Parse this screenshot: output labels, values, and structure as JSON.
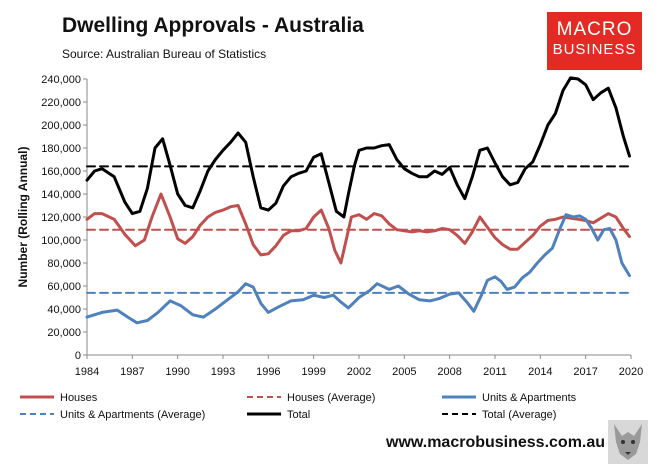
{
  "title": "Dwelling Approvals - Australia",
  "subtitle": "Source: Australian Bureau of Statistics",
  "logo": {
    "line1": "MACRO",
    "line2": "BUSINESS"
  },
  "website": "www.macrobusiness.com.au",
  "colors": {
    "houses": "#c0504d",
    "units": "#4f81bd",
    "total": "#000000"
  },
  "chart_data": {
    "type": "line",
    "title": "Dwelling Approvals - Australia",
    "xlabel": "",
    "ylabel": "Number (Rolling Annual)",
    "xlim": [
      1984,
      2020
    ],
    "ylim": [
      0,
      240000
    ],
    "yticks": [
      0,
      20000,
      40000,
      60000,
      80000,
      100000,
      120000,
      140000,
      160000,
      180000,
      200000,
      220000,
      240000
    ],
    "ytick_labels": [
      "0",
      "20,000",
      "40,000",
      "60,000",
      "80,000",
      "100,000",
      "120,000",
      "140,000",
      "160,000",
      "180,000",
      "200,000",
      "220,000",
      "240,000"
    ],
    "xticks": [
      1984,
      1987,
      1990,
      1993,
      1996,
      1999,
      2002,
      2005,
      2008,
      2011,
      2014,
      2017,
      2020
    ],
    "xtick_labels": [
      "1984",
      "1987",
      "1990",
      "1993",
      "1996",
      "1999",
      "2002",
      "2005",
      "2008",
      "2011",
      "2014",
      "2017",
      "2020"
    ],
    "series": [
      {
        "name": "Houses",
        "color": "#c0504d",
        "style": "solid",
        "x": [
          1984,
          1984.5,
          1985,
          1985.8,
          1986.5,
          1987.2,
          1987.8,
          1988.3,
          1988.9,
          1989.5,
          1990,
          1990.5,
          1991,
          1991.5,
          1992,
          1992.5,
          1993,
          1993.5,
          1994,
          1994.5,
          1995,
          1995.5,
          1996,
          1996.5,
          1997,
          1997.5,
          1998,
          1998.5,
          1999,
          1999.5,
          2000,
          2000.4,
          2000.8,
          2001.1,
          2001.5,
          2002,
          2002.5,
          2003,
          2003.5,
          2004,
          2004.5,
          2005,
          2005.5,
          2006,
          2006.5,
          2007,
          2007.5,
          2008,
          2008.5,
          2009,
          2009.5,
          2010,
          2010.5,
          2011,
          2011.5,
          2012,
          2012.5,
          2013,
          2013.5,
          2014,
          2014.5,
          2015,
          2015.5,
          2016,
          2016.5,
          2017,
          2017.5,
          2018,
          2018.5,
          2019,
          2019.5,
          2019.9
        ],
        "values": [
          118000,
          123000,
          123000,
          118000,
          105000,
          95000,
          100000,
          120000,
          140000,
          120000,
          101000,
          97000,
          103000,
          113000,
          120000,
          124000,
          126000,
          129000,
          130000,
          114000,
          96000,
          87000,
          88000,
          95000,
          104000,
          108000,
          108000,
          110000,
          120000,
          126000,
          110000,
          91000,
          80000,
          97000,
          120000,
          122000,
          118000,
          123000,
          121000,
          114000,
          109000,
          108000,
          107000,
          108000,
          107000,
          108000,
          110000,
          109000,
          104000,
          97000,
          107000,
          120000,
          111000,
          102000,
          96000,
          92000,
          92000,
          98000,
          104000,
          112000,
          117000,
          118000,
          120000,
          119000,
          118000,
          117000,
          115000,
          119000,
          123000,
          120000,
          110000,
          103000
        ]
      },
      {
        "name": "Houses (Average)",
        "color": "#c0504d",
        "style": "dashed",
        "x": [
          1984,
          2020
        ],
        "values": [
          109000,
          109000
        ]
      },
      {
        "name": "Units & Apartments",
        "color": "#4f81bd",
        "style": "solid",
        "x": [
          1984,
          1985,
          1986,
          1986.7,
          1987.3,
          1988,
          1988.7,
          1989.5,
          1990.2,
          1991,
          1991.7,
          1992.5,
          1993.3,
          1994,
          1994.5,
          1995,
          1995.5,
          1996,
          1996.7,
          1997.5,
          1998.3,
          1999,
          1999.7,
          2000.3,
          2000.8,
          2001.3,
          2002,
          2002.7,
          2003.2,
          2004,
          2004.6,
          2005.3,
          2006,
          2006.7,
          2007.3,
          2008,
          2008.6,
          2009.2,
          2009.6,
          2010.1,
          2010.5,
          2011,
          2011.4,
          2011.8,
          2012.3,
          2012.8,
          2013.3,
          2013.8,
          2014.3,
          2014.8,
          2015.3,
          2015.7,
          2016.2,
          2016.6,
          2017,
          2017.4,
          2017.8,
          2018.2,
          2018.6,
          2019,
          2019.4,
          2019.9
        ],
        "values": [
          33000,
          37000,
          39000,
          33000,
          28000,
          30000,
          37000,
          47000,
          43000,
          35000,
          33000,
          40000,
          48000,
          55000,
          62000,
          59000,
          45000,
          37000,
          42000,
          47000,
          48000,
          52000,
          50000,
          52000,
          46000,
          41000,
          50000,
          56000,
          62000,
          57000,
          60000,
          53000,
          48000,
          47000,
          49000,
          53000,
          54000,
          45000,
          38000,
          52000,
          65000,
          68000,
          64000,
          57000,
          59000,
          67000,
          72000,
          80000,
          87000,
          93000,
          110000,
          122000,
          120000,
          121000,
          118000,
          110000,
          100000,
          109000,
          110000,
          100000,
          80000,
          69000
        ]
      },
      {
        "name": "Units & Apartments (Average)",
        "color": "#4f81bd",
        "style": "dashed",
        "x": [
          1984,
          2020
        ],
        "values": [
          54000,
          54000
        ]
      },
      {
        "name": "Total",
        "color": "#000000",
        "style": "solid",
        "x": [
          1984,
          1984.5,
          1985,
          1985.8,
          1986.5,
          1987,
          1987.5,
          1988,
          1988.5,
          1989,
          1989.5,
          1990,
          1990.5,
          1991,
          1991.5,
          1992,
          1992.5,
          1993,
          1993.5,
          1994,
          1994.5,
          1995,
          1995.5,
          1996,
          1996.5,
          1997,
          1997.5,
          1998,
          1998.5,
          1999,
          1999.5,
          2000,
          2000.5,
          2001,
          2001.3,
          2001.7,
          2002,
          2002.5,
          2003,
          2003.5,
          2004,
          2004.5,
          2005,
          2005.5,
          2006,
          2006.5,
          2007,
          2007.5,
          2008,
          2008.5,
          2009,
          2009.5,
          2010,
          2010.5,
          2011,
          2011.5,
          2012,
          2012.5,
          2013,
          2013.5,
          2014,
          2014.5,
          2015,
          2015.5,
          2016,
          2016.5,
          2017,
          2017.5,
          2018,
          2018.5,
          2019,
          2019.5,
          2019.9
        ],
        "values": [
          152000,
          160000,
          162000,
          155000,
          133000,
          123000,
          125000,
          145000,
          180000,
          188000,
          165000,
          140000,
          130000,
          128000,
          143000,
          160000,
          170000,
          178000,
          185000,
          193000,
          185000,
          155000,
          128000,
          126000,
          132000,
          147000,
          155000,
          158000,
          160000,
          172000,
          175000,
          150000,
          125000,
          120000,
          140000,
          165000,
          178000,
          180000,
          180000,
          182000,
          183000,
          170000,
          162000,
          158000,
          155000,
          155000,
          160000,
          157000,
          163000,
          148000,
          136000,
          155000,
          178000,
          180000,
          167000,
          155000,
          148000,
          150000,
          162000,
          168000,
          183000,
          200000,
          210000,
          230000,
          241000,
          240000,
          235000,
          222000,
          228000,
          232000,
          215000,
          190000,
          173000
        ]
      },
      {
        "name": "Total (Average)",
        "color": "#000000",
        "style": "dashed",
        "x": [
          1984,
          2020
        ],
        "values": [
          164000,
          164000
        ]
      }
    ],
    "legend": {
      "position": "bottom",
      "items": [
        {
          "label": "Houses",
          "color": "#c0504d",
          "style": "solid"
        },
        {
          "label": "Houses (Average)",
          "color": "#c0504d",
          "style": "dashed"
        },
        {
          "label": "Units & Apartments",
          "color": "#4f81bd",
          "style": "solid"
        },
        {
          "label": "Units & Apartments (Average)",
          "color": "#4f81bd",
          "style": "dashed"
        },
        {
          "label": "Total",
          "color": "#000000",
          "style": "solid"
        },
        {
          "label": "Total (Average)",
          "color": "#000000",
          "style": "dashed"
        }
      ]
    }
  }
}
